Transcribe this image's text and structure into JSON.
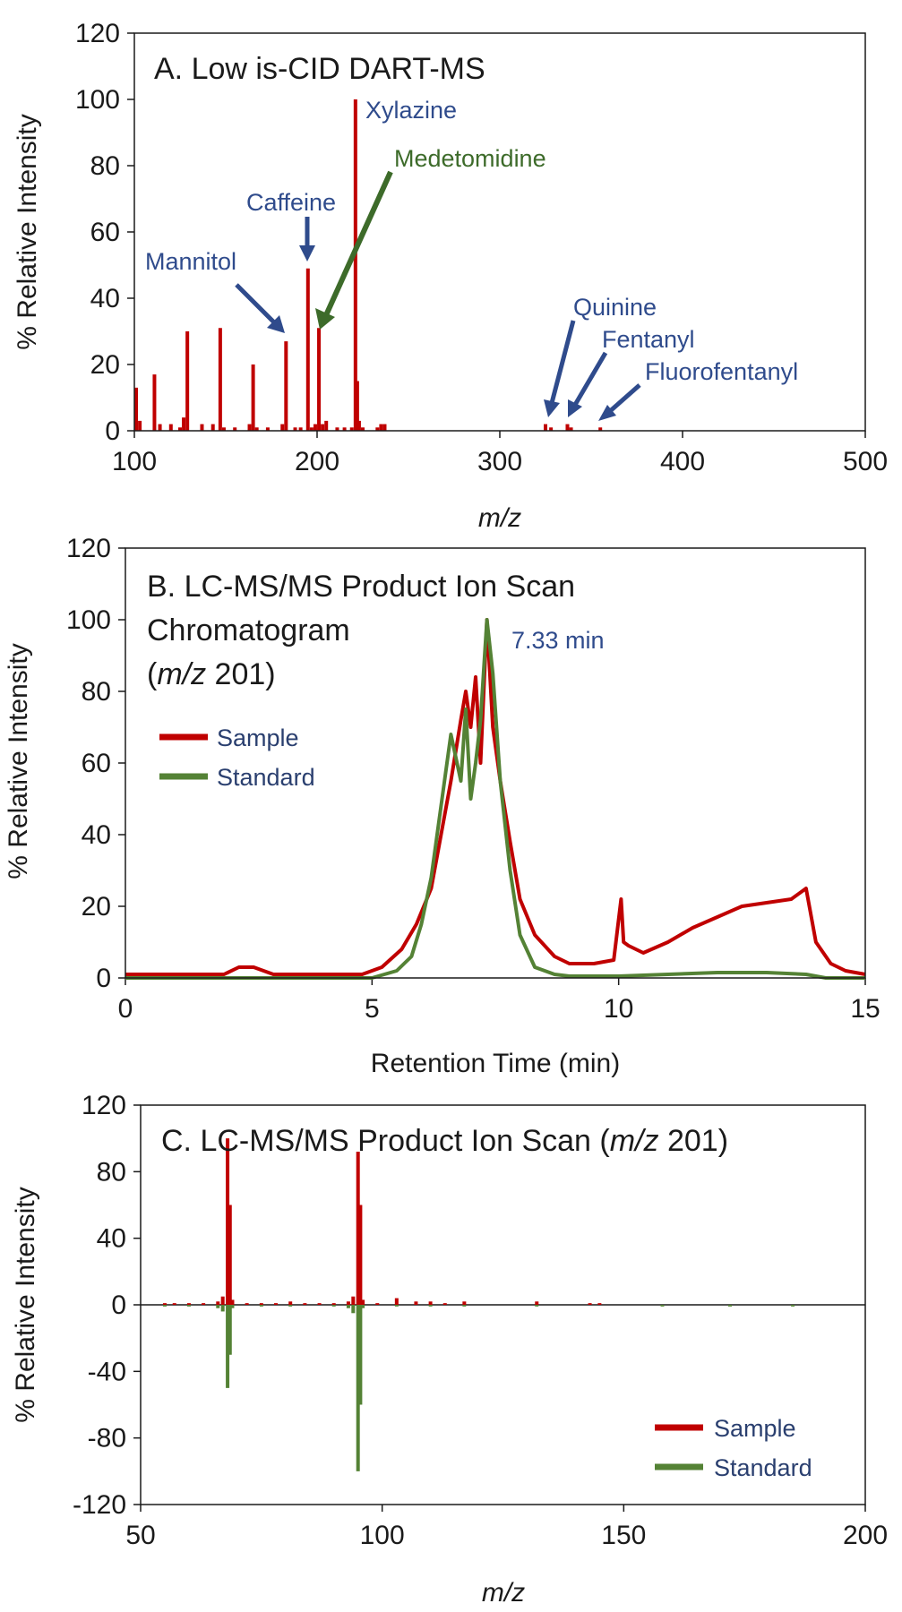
{
  "colors": {
    "sample": "#c00000",
    "standard": "#548235",
    "annotation_blue": "#2f4b8c",
    "annotation_green": "#3d6b2a",
    "axis": "#1a1a1a"
  },
  "chart_data": [
    {
      "id": "A",
      "type": "bar",
      "title": "A. Low is-CID DART-MS",
      "xlabel": "m/z",
      "ylabel": "% Relative Intensity",
      "xlim": [
        100,
        500
      ],
      "ylim": [
        0,
        120
      ],
      "x_ticks": [
        100,
        200,
        300,
        400,
        500
      ],
      "y_ticks": [
        0,
        20,
        40,
        60,
        80,
        100,
        120
      ],
      "series": [
        {
          "name": "Spectrum",
          "color": "sample",
          "x": [
            101,
            103,
            111,
            114,
            120,
            125,
            127,
            129,
            137,
            143,
            147,
            149,
            155,
            163,
            165,
            167,
            173,
            181,
            183,
            188,
            191,
            195,
            197,
            199,
            201,
            203,
            205,
            211,
            215,
            219,
            221,
            222,
            223,
            225,
            233,
            235,
            237,
            325,
            328,
            337,
            339,
            355
          ],
          "values": [
            13,
            3,
            17,
            2,
            2,
            1,
            4,
            30,
            2,
            2,
            31,
            1,
            1,
            2,
            20,
            1,
            1,
            2,
            27,
            1,
            1,
            49,
            1,
            2,
            31,
            2,
            3,
            1,
            1,
            1,
            100,
            15,
            3,
            1,
            1,
            2,
            2,
            2,
            1,
            2,
            1,
            1
          ]
        }
      ],
      "annotations": [
        {
          "text": "Xylazine",
          "x": 221,
          "y": 100,
          "color": "annotation_blue",
          "arrow": false
        },
        {
          "text": "Medetomidine",
          "x": 201,
          "y": 31,
          "color": "annotation_green",
          "arrow": true
        },
        {
          "text": "Caffeine",
          "x": 195,
          "y": 49,
          "color": "annotation_blue",
          "arrow": true
        },
        {
          "text": "Mannitol",
          "x": 183,
          "y": 27,
          "color": "annotation_blue",
          "arrow": true
        },
        {
          "text": "Quinine",
          "x": 325,
          "y": 2,
          "color": "annotation_blue",
          "arrow": true
        },
        {
          "text": "Fentanyl",
          "x": 337,
          "y": 2,
          "color": "annotation_blue",
          "arrow": true
        },
        {
          "text": "Fluorofentanyl",
          "x": 355,
          "y": 1,
          "color": "annotation_blue",
          "arrow": true
        }
      ]
    },
    {
      "id": "B",
      "type": "line",
      "title_lines": [
        "B. LC-MS/MS Product Ion Scan",
        "Chromatogram"
      ],
      "title_line3": {
        "open": "(",
        "italic": "m/z",
        "rest": " 201)"
      },
      "xlabel": "Retention Time (min)",
      "ylabel": "% Relative Intensity",
      "xlim": [
        0,
        15
      ],
      "ylim": [
        0,
        120
      ],
      "x_ticks": [
        0,
        5,
        10,
        15
      ],
      "y_ticks": [
        0,
        20,
        40,
        60,
        80,
        100,
        120
      ],
      "peak_label": "7.33 min",
      "peak_x": 7.33,
      "legend": [
        "Sample",
        "Standard"
      ],
      "series": [
        {
          "name": "Sample",
          "color": "sample",
          "x": [
            0,
            1,
            2,
            2.3,
            2.6,
            3,
            4,
            4.8,
            5.2,
            5.6,
            5.9,
            6.2,
            6.4,
            6.6,
            6.8,
            6.9,
            7.0,
            7.1,
            7.2,
            7.33,
            7.45,
            7.6,
            7.8,
            8.0,
            8.3,
            8.7,
            9.0,
            9.5,
            9.9,
            10.05,
            10.1,
            10.2,
            10.5,
            11.0,
            11.5,
            12.0,
            12.5,
            13.0,
            13.5,
            13.8,
            14.0,
            14.3,
            14.6,
            15.0
          ],
          "values": [
            1,
            1,
            1,
            3,
            3,
            1,
            1,
            1,
            3,
            8,
            15,
            25,
            40,
            55,
            72,
            80,
            70,
            84,
            60,
            100,
            70,
            55,
            38,
            22,
            12,
            6,
            4,
            4,
            5,
            22,
            10,
            9,
            7,
            10,
            14,
            17,
            20,
            21,
            22,
            25,
            10,
            4,
            2,
            1
          ]
        },
        {
          "name": "Standard",
          "color": "standard",
          "x": [
            0,
            1,
            2,
            3,
            4,
            5,
            5.5,
            5.8,
            6.0,
            6.2,
            6.4,
            6.6,
            6.8,
            6.9,
            7.0,
            7.1,
            7.2,
            7.33,
            7.45,
            7.6,
            7.8,
            8.0,
            8.3,
            8.7,
            9.0,
            10.0,
            11.0,
            12.0,
            13.0,
            13.8,
            14.2,
            15.0
          ],
          "values": [
            0,
            0,
            0,
            0,
            0,
            0,
            2,
            6,
            15,
            28,
            48,
            68,
            55,
            75,
            50,
            60,
            72,
            100,
            85,
            55,
            30,
            12,
            3,
            1,
            0.5,
            0.5,
            1,
            1.5,
            1.5,
            1,
            0,
            0
          ]
        }
      ]
    },
    {
      "id": "C",
      "type": "bar",
      "title": {
        "text": "C. LC-MS/MS Product Ion Scan (",
        "italic": "m/z",
        "rest": " 201)"
      },
      "xlabel": "m/z",
      "ylabel": "% Relative Intensity",
      "xlim": [
        50,
        200
      ],
      "ylim": [
        -120,
        120
      ],
      "x_ticks": [
        50,
        100,
        150,
        200
      ],
      "y_ticks": [
        -120,
        -80,
        -40,
        0,
        40,
        80,
        120
      ],
      "legend": [
        "Sample",
        "Standard"
      ],
      "series": [
        {
          "name": "Sample",
          "color": "sample",
          "x": [
            55,
            57,
            60,
            63,
            66,
            67,
            68,
            68.5,
            69,
            72,
            75,
            78,
            81,
            84,
            87,
            90,
            93,
            94,
            95,
            95.5,
            96,
            99,
            103,
            107,
            110,
            113,
            117,
            132,
            143,
            145
          ],
          "values": [
            1,
            1,
            1,
            1,
            2,
            5,
            100,
            60,
            3,
            1,
            1,
            1,
            2,
            1,
            1,
            1,
            2,
            5,
            92,
            60,
            3,
            1,
            4,
            2,
            2,
            1,
            2,
            2,
            1,
            1
          ]
        },
        {
          "name": "Standard",
          "color": "standard",
          "x": [
            55,
            60,
            66,
            67,
            68,
            68.5,
            69,
            75,
            81,
            90,
            93,
            94,
            95,
            95.5,
            96,
            103,
            110,
            117,
            132,
            158,
            172,
            185
          ],
          "values": [
            -1,
            -1,
            -2,
            -4,
            -50,
            -30,
            -2,
            -1,
            -1,
            -1,
            -2,
            -5,
            -100,
            -60,
            -2,
            -1,
            -1,
            -1,
            -1,
            -1,
            -1,
            -1
          ]
        }
      ]
    }
  ]
}
